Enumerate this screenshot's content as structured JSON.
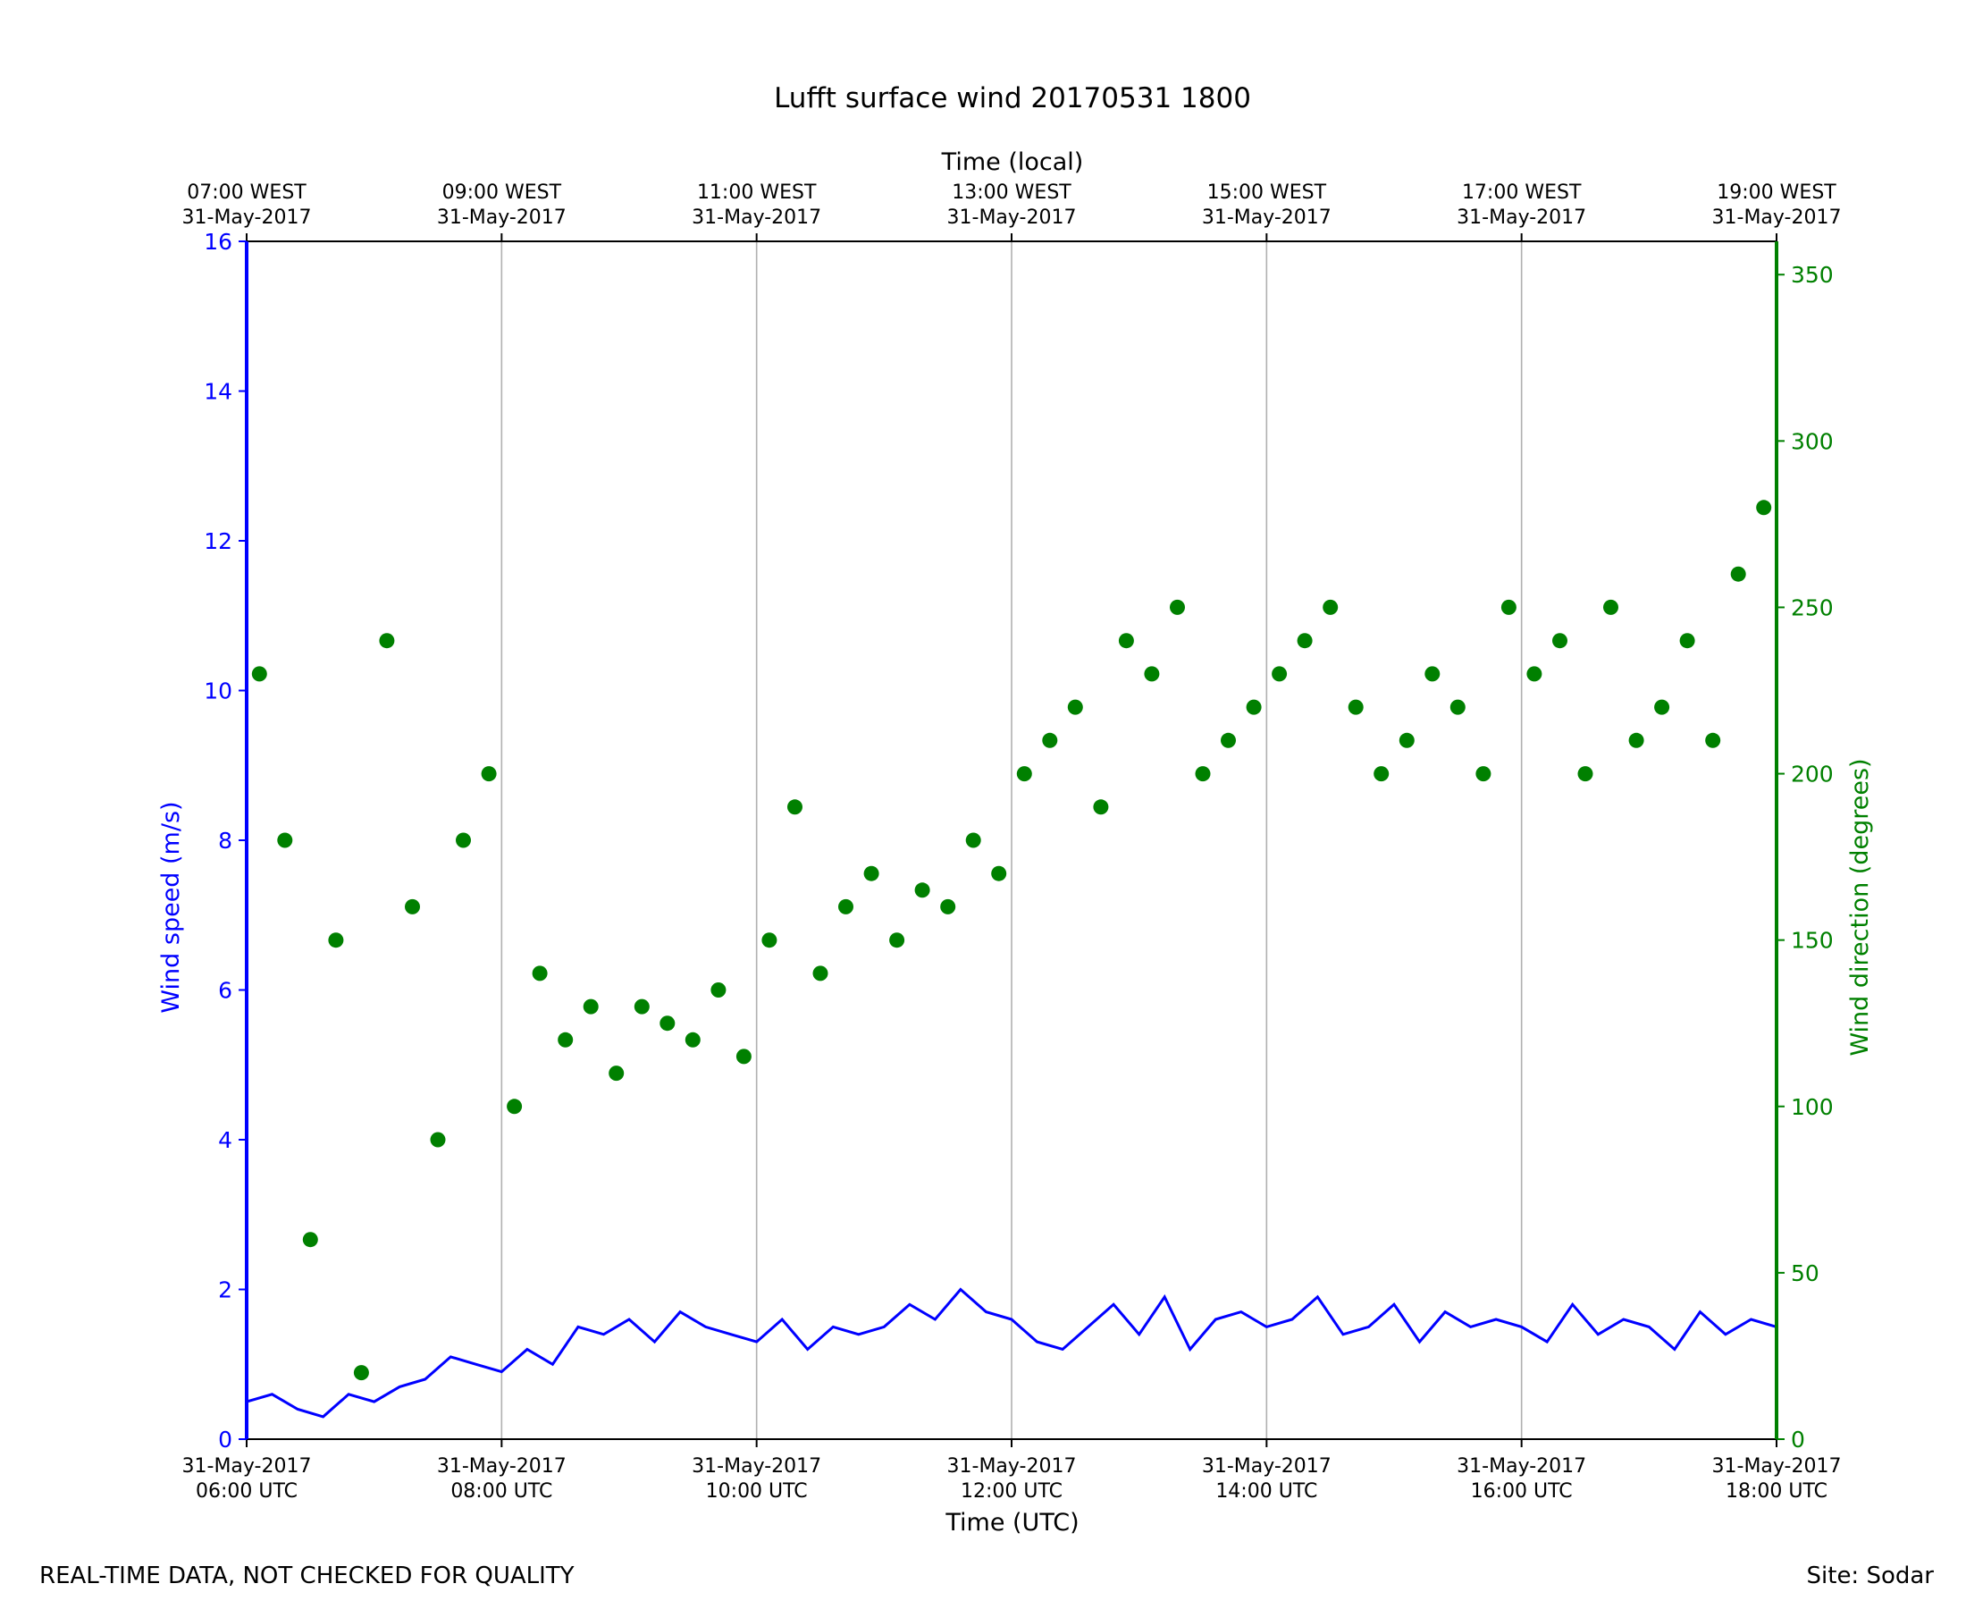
{
  "chart_data": {
    "type": "line",
    "title": "Lufft surface wind 20170531 1800",
    "x_label_bottom": "Time (UTC)",
    "x_label_top": "Time (local)",
    "y_label_left": "Wind speed (m/s)",
    "y_label_right": "Wind direction (degrees)",
    "x_range_utc_hours": [
      6,
      18
    ],
    "y_left_range": [
      0,
      16
    ],
    "y_right_range": [
      0,
      360
    ],
    "y_left_ticks": [
      "0",
      "2",
      "4",
      "6",
      "8",
      "10",
      "12",
      "14",
      "16"
    ],
    "y_right_ticks": [
      "0",
      "50",
      "100",
      "150",
      "200",
      "250",
      "300",
      "350"
    ],
    "bottom_ticks": [
      {
        "line1": "31-May-2017",
        "line2": "06:00 UTC"
      },
      {
        "line1": "31-May-2017",
        "line2": "08:00 UTC"
      },
      {
        "line1": "31-May-2017",
        "line2": "10:00 UTC"
      },
      {
        "line1": "31-May-2017",
        "line2": "12:00 UTC"
      },
      {
        "line1": "31-May-2017",
        "line2": "14:00 UTC"
      },
      {
        "line1": "31-May-2017",
        "line2": "16:00 UTC"
      },
      {
        "line1": "31-May-2017",
        "line2": "18:00 UTC"
      }
    ],
    "top_ticks": [
      {
        "line1": "07:00 WEST",
        "line2": "31-May-2017"
      },
      {
        "line1": "09:00 WEST",
        "line2": "31-May-2017"
      },
      {
        "line1": "11:00 WEST",
        "line2": "31-May-2017"
      },
      {
        "line1": "13:00 WEST",
        "line2": "31-May-2017"
      },
      {
        "line1": "15:00 WEST",
        "line2": "31-May-2017"
      },
      {
        "line1": "17:00 WEST",
        "line2": "31-May-2017"
      },
      {
        "line1": "19:00 WEST",
        "line2": "31-May-2017"
      }
    ],
    "grid": "vertical",
    "colors": {
      "speed": "#0000ff",
      "direction": "#008000"
    },
    "series": [
      {
        "axis": "left",
        "style": "line",
        "x_utc_hours": [
          6.0,
          6.2,
          6.4,
          6.6,
          6.8,
          7.0,
          7.2,
          7.4,
          7.6,
          7.8,
          8.0,
          8.2,
          8.4,
          8.6,
          8.8,
          9.0,
          9.2,
          9.4,
          9.6,
          9.8,
          10.0,
          10.2,
          10.4,
          10.6,
          10.8,
          11.0,
          11.2,
          11.4,
          11.6,
          11.8,
          12.0,
          12.2,
          12.4,
          12.6,
          12.8,
          13.0,
          13.2,
          13.4,
          13.6,
          13.8,
          14.0,
          14.2,
          14.4,
          14.6,
          14.8,
          15.0,
          15.2,
          15.4,
          15.6,
          15.8,
          16.0,
          16.2,
          16.4,
          16.6,
          16.8,
          17.0,
          17.2,
          17.4,
          17.6,
          17.8,
          18.0
        ],
        "y": [
          0.5,
          0.6,
          0.4,
          0.3,
          0.6,
          0.5,
          0.7,
          0.8,
          1.1,
          1.0,
          0.9,
          1.2,
          1.0,
          1.5,
          1.4,
          1.6,
          1.3,
          1.7,
          1.5,
          1.4,
          1.3,
          1.6,
          1.2,
          1.5,
          1.4,
          1.5,
          1.8,
          1.6,
          2.0,
          1.7,
          1.6,
          1.3,
          1.2,
          1.5,
          1.8,
          1.4,
          1.9,
          1.2,
          1.6,
          1.7,
          1.5,
          1.6,
          1.9,
          1.4,
          1.5,
          1.8,
          1.3,
          1.7,
          1.5,
          1.6,
          1.5,
          1.3,
          1.8,
          1.4,
          1.6,
          1.5,
          1.2,
          1.7,
          1.4,
          1.6,
          1.5
        ]
      },
      {
        "axis": "right",
        "style": "points",
        "x_utc_hours": [
          6.1,
          6.3,
          6.5,
          6.7,
          6.9,
          7.1,
          7.3,
          7.5,
          7.7,
          7.9,
          8.1,
          8.3,
          8.5,
          8.7,
          8.9,
          9.1,
          9.3,
          9.5,
          9.7,
          9.9,
          10.1,
          10.3,
          10.5,
          10.7,
          10.9,
          11.1,
          11.3,
          11.5,
          11.7,
          11.9,
          12.1,
          12.3,
          12.5,
          12.7,
          12.9,
          13.1,
          13.3,
          13.5,
          13.7,
          13.9,
          14.1,
          14.3,
          14.5,
          14.7,
          14.9,
          15.1,
          15.3,
          15.5,
          15.7,
          15.9,
          16.1,
          16.3,
          16.5,
          16.7,
          16.9,
          17.1,
          17.3,
          17.5,
          17.7,
          17.9
        ],
        "y": [
          230,
          180,
          60,
          150,
          20,
          240,
          160,
          90,
          180,
          200,
          100,
          140,
          120,
          130,
          110,
          130,
          125,
          120,
          135,
          115,
          150,
          190,
          140,
          160,
          170,
          150,
          165,
          160,
          180,
          170,
          200,
          210,
          220,
          190,
          240,
          230,
          250,
          200,
          210,
          220,
          230,
          240,
          250,
          220,
          200,
          210,
          230,
          220,
          200,
          250,
          230,
          240,
          200,
          250,
          210,
          220,
          240,
          210,
          260,
          280
        ]
      }
    ]
  },
  "footer": {
    "left": "REAL-TIME DATA, NOT CHECKED FOR QUALITY",
    "right": "Site: Sodar"
  }
}
